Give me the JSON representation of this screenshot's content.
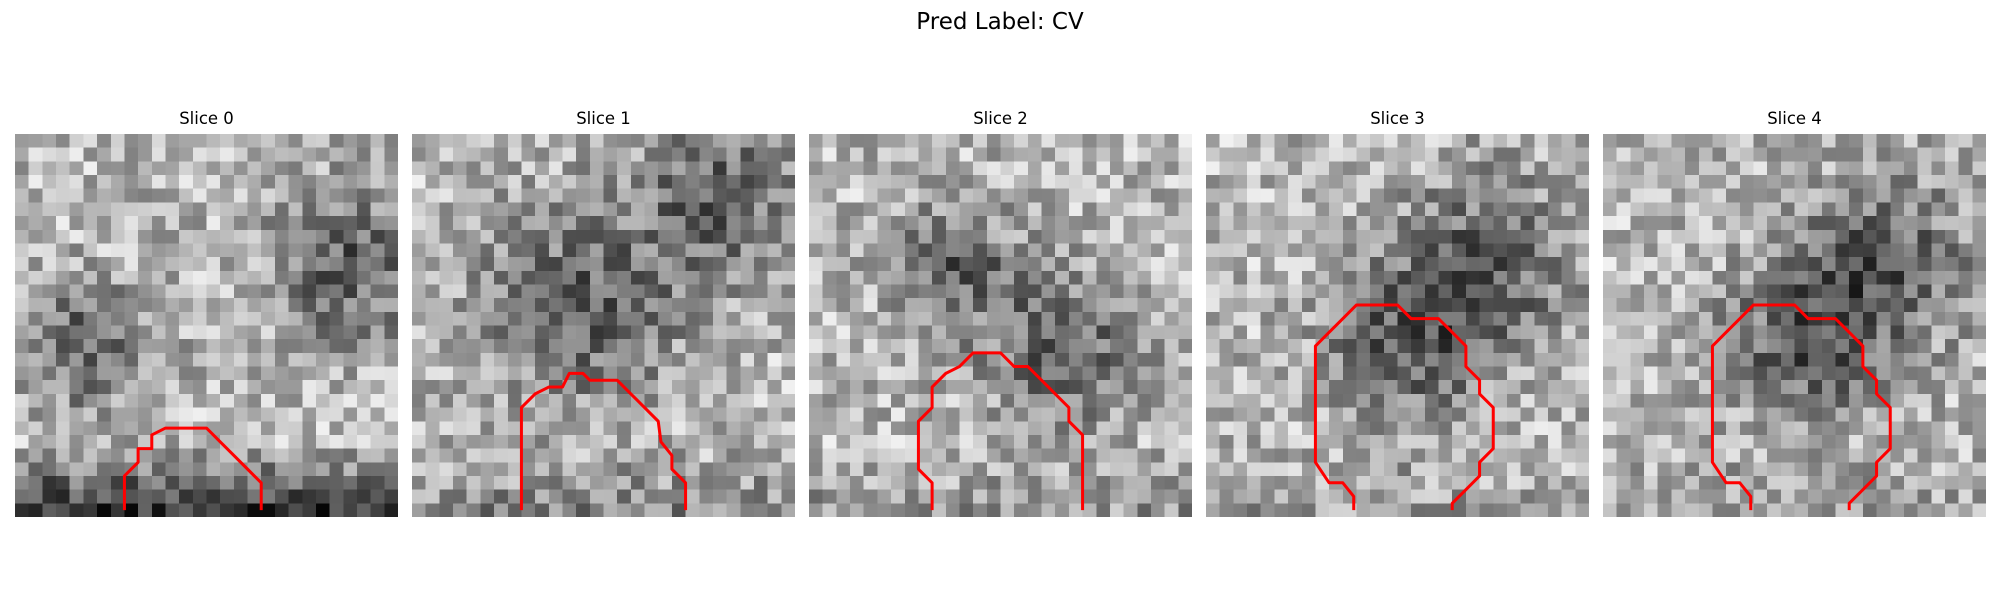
{
  "figure": {
    "suptitle": "Pred Label: CV",
    "contour_color": "#ff0000",
    "colormap": "gray",
    "grid_size": 28
  },
  "slices": [
    {
      "title": "Slice 0",
      "texture_seed": 11,
      "dark_blobs": [
        [
          5,
          15,
          3.2
        ],
        [
          24,
          9,
          4
        ]
      ],
      "dark_band": 0.85
    },
    {
      "title": "Slice 1",
      "texture_seed": 23,
      "dark_blobs": [
        [
          12,
          12,
          5
        ],
        [
          22,
          4,
          4
        ]
      ],
      "dark_band": 0.3
    },
    {
      "title": "Slice 2",
      "texture_seed": 37,
      "dark_blobs": [
        [
          10,
          9,
          3
        ],
        [
          18,
          15,
          4
        ]
      ],
      "dark_band": 0.2
    },
    {
      "title": "Slice 3",
      "texture_seed": 41,
      "dark_blobs": [
        [
          14,
          15,
          4
        ],
        [
          20,
          9,
          4.5
        ]
      ],
      "dark_band": 0.15
    },
    {
      "title": "Slice 4",
      "texture_seed": 53,
      "dark_blobs": [
        [
          14,
          15,
          4
        ],
        [
          20,
          9,
          4.5
        ]
      ],
      "dark_band": 0.15
    }
  ]
}
